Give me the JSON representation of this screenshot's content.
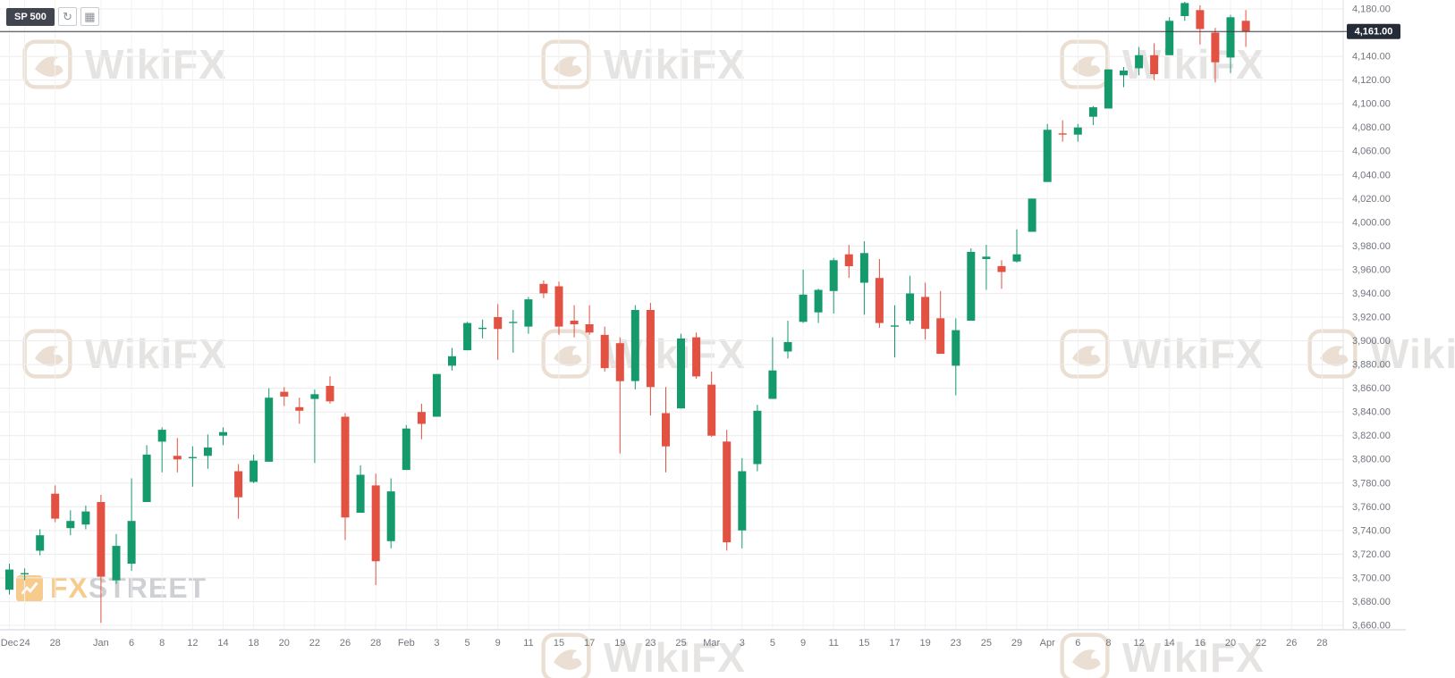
{
  "toolbar": {
    "symbol_label": "SP 500",
    "refresh_icon": "↻",
    "calendar_icon": "▦"
  },
  "price_line": {
    "label": "4,161.00",
    "color": "#3a3e46",
    "badge_bg": "#262b38",
    "badge_text_color": "#ffffff"
  },
  "watermark": {
    "text": "WikiFX"
  },
  "fxstreet_logo": {
    "fx": "FX",
    "street": "STREET"
  },
  "chart_data": {
    "type": "candlestick",
    "title": "SP 500",
    "grid": true,
    "up_color": "#159a6c",
    "down_color": "#e25141",
    "grid_color_h": "#ececec",
    "grid_color_v": "#f2f2f2",
    "axis_text_color": "#71757d",
    "current_price": 4161.0,
    "y_axis": {
      "max": 4180,
      "min": 3660,
      "step": 20,
      "tick_labels": [
        "4,180.00",
        "4,160.00",
        "4,140.00",
        "4,120.00",
        "4,100.00",
        "4,080.00",
        "4,060.00",
        "4,040.00",
        "4,020.00",
        "4,000.00",
        "3,980.00",
        "3,960.00",
        "3,940.00",
        "3,920.00",
        "3,900.00",
        "3,880.00",
        "3,860.00",
        "3,840.00",
        "3,820.00",
        "3,800.00",
        "3,780.00",
        "3,760.00",
        "3,740.00",
        "3,720.00",
        "3,700.00",
        "3,680.00",
        "3,660.00"
      ]
    },
    "x_axis": {
      "slots": 88,
      "labels": [
        [
          "Dec",
          0
        ],
        [
          "24",
          1
        ],
        [
          "28",
          3
        ],
        [
          "Jan",
          6
        ],
        [
          "6",
          8
        ],
        [
          "8",
          10
        ],
        [
          "12",
          12
        ],
        [
          "14",
          14
        ],
        [
          "18",
          16
        ],
        [
          "20",
          18
        ],
        [
          "22",
          20
        ],
        [
          "26",
          22
        ],
        [
          "28",
          24
        ],
        [
          "Feb",
          26
        ],
        [
          "3",
          28
        ],
        [
          "5",
          30
        ],
        [
          "9",
          32
        ],
        [
          "11",
          34
        ],
        [
          "15",
          36
        ],
        [
          "17",
          38
        ],
        [
          "19",
          40
        ],
        [
          "23",
          42
        ],
        [
          "25",
          44
        ],
        [
          "Mar",
          46
        ],
        [
          "3",
          48
        ],
        [
          "5",
          50
        ],
        [
          "9",
          52
        ],
        [
          "11",
          54
        ],
        [
          "15",
          56
        ],
        [
          "17",
          58
        ],
        [
          "19",
          60
        ],
        [
          "23",
          62
        ],
        [
          "25",
          64
        ],
        [
          "29",
          66
        ],
        [
          "Apr",
          68
        ],
        [
          "6",
          70
        ],
        [
          "8",
          72
        ],
        [
          "12",
          74
        ],
        [
          "14",
          76
        ],
        [
          "16",
          78
        ],
        [
          "20",
          80
        ],
        [
          "22",
          82
        ],
        [
          "26",
          84
        ],
        [
          "28",
          86
        ]
      ]
    },
    "ohlc_columns": [
      "date",
      "open",
      "high",
      "low",
      "close"
    ],
    "series": [
      [
        "Dec 23",
        3690,
        3712,
        3686,
        3707
      ],
      [
        "Dec 24",
        3703,
        3708,
        3698,
        3704
      ],
      [
        "Dec 28",
        3723,
        3741,
        3719,
        3736
      ],
      [
        "Dec 29",
        3771,
        3778,
        3747,
        3750
      ],
      [
        "Dec 30",
        3742,
        3757,
        3736,
        3748
      ],
      [
        "Dec 31",
        3745,
        3761,
        3741,
        3756
      ],
      [
        "Jan 4",
        3764,
        3770,
        3662,
        3701
      ],
      [
        "Jan 5",
        3698,
        3737,
        3695,
        3727
      ],
      [
        "Jan 6",
        3712,
        3784,
        3706,
        3748
      ],
      [
        "Jan 7",
        3764,
        3812,
        3764,
        3804
      ],
      [
        "Jan 8",
        3815,
        3827,
        3789,
        3825
      ],
      [
        "Jan 11",
        3803,
        3818,
        3789,
        3800
      ],
      [
        "Jan 12",
        3801,
        3811,
        3777,
        3802
      ],
      [
        "Jan 13",
        3803,
        3821,
        3792,
        3810
      ],
      [
        "Jan 14",
        3820,
        3827,
        3812,
        3823
      ],
      [
        "Jan 15",
        3790,
        3796,
        3750,
        3768
      ],
      [
        "Jan 19",
        3781,
        3804,
        3780,
        3799
      ],
      [
        "Jan 20",
        3798,
        3860,
        3798,
        3852
      ],
      [
        "Jan 21",
        3857,
        3861,
        3845,
        3853
      ],
      [
        "Jan 22",
        3844,
        3852,
        3830,
        3841
      ],
      [
        "Jan 25",
        3851,
        3859,
        3797,
        3855
      ],
      [
        "Jan 26",
        3862,
        3870,
        3847,
        3849
      ],
      [
        "Jan 27",
        3836,
        3839,
        3732,
        3751
      ],
      [
        "Jan 28",
        3755,
        3795,
        3755,
        3787
      ],
      [
        "Jan 29",
        3778,
        3788,
        3694,
        3714
      ],
      [
        "Feb 1",
        3731,
        3784,
        3725,
        3773
      ],
      [
        "Feb 2",
        3791,
        3829,
        3791,
        3826
      ],
      [
        "Feb 3",
        3840,
        3847,
        3817,
        3830
      ],
      [
        "Feb 4",
        3836,
        3872,
        3836,
        3872
      ],
      [
        "Feb 5",
        3879,
        3894,
        3875,
        3887
      ],
      [
        "Feb 8",
        3892,
        3916,
        3892,
        3915
      ],
      [
        "Feb 9",
        3910,
        3918,
        3902,
        3911
      ],
      [
        "Feb 10",
        3920,
        3931,
        3884,
        3910
      ],
      [
        "Feb 11",
        3916,
        3926,
        3890,
        3916
      ],
      [
        "Feb 12",
        3912,
        3937,
        3906,
        3935
      ],
      [
        "Feb 16",
        3948,
        3951,
        3936,
        3940
      ],
      [
        "Feb 17",
        3946,
        3950,
        3905,
        3912
      ],
      [
        "Feb 18",
        3917,
        3930,
        3903,
        3914
      ],
      [
        "Feb 19",
        3914,
        3930,
        3905,
        3907
      ],
      [
        "Feb 22",
        3905,
        3912,
        3874,
        3877
      ],
      [
        "Feb 23",
        3898,
        3903,
        3805,
        3866
      ],
      [
        "Feb 24",
        3866,
        3930,
        3859,
        3926
      ],
      [
        "Feb 25",
        3926,
        3932,
        3837,
        3861
      ],
      [
        "Feb 26",
        3839,
        3861,
        3789,
        3811
      ],
      [
        "Mar 1",
        3843,
        3906,
        3843,
        3902
      ],
      [
        "Mar 2",
        3903,
        3907,
        3868,
        3870
      ],
      [
        "Mar 3",
        3863,
        3874,
        3819,
        3820
      ],
      [
        "Mar 4",
        3815,
        3825,
        3723,
        3730
      ],
      [
        "Mar 5",
        3740,
        3801,
        3725,
        3790
      ],
      [
        "Mar 8",
        3796,
        3846,
        3790,
        3841
      ],
      [
        "Mar 9",
        3851,
        3903,
        3851,
        3875
      ],
      [
        "Mar 10",
        3891,
        3917,
        3885,
        3899
      ],
      [
        "Mar 11",
        3916,
        3960,
        3915,
        3939
      ],
      [
        "Mar 12",
        3924,
        3944,
        3915,
        3943
      ],
      [
        "Mar 15",
        3942,
        3970,
        3923,
        3968
      ],
      [
        "Mar 16",
        3973,
        3981,
        3953,
        3963
      ],
      [
        "Mar 17",
        3949,
        3984,
        3922,
        3974
      ],
      [
        "Mar 18",
        3953,
        3969,
        3911,
        3915
      ],
      [
        "Mar 19",
        3913,
        3930,
        3886,
        3913
      ],
      [
        "Mar 22",
        3917,
        3955,
        3914,
        3940
      ],
      [
        "Mar 23",
        3937,
        3949,
        3901,
        3910
      ],
      [
        "Mar 24",
        3919,
        3942,
        3889,
        3889
      ],
      [
        "Mar 25",
        3879,
        3919,
        3854,
        3909
      ],
      [
        "Mar 26",
        3917,
        3978,
        3917,
        3975
      ],
      [
        "Mar 29",
        3969,
        3981,
        3943,
        3971
      ],
      [
        "Mar 30",
        3963,
        3968,
        3944,
        3958
      ],
      [
        "Mar 31",
        3967,
        3994,
        3966,
        3973
      ],
      [
        "Apr 1",
        3992,
        4020,
        3992,
        4020
      ],
      [
        "Apr 5",
        4034,
        4083,
        4034,
        4078
      ],
      [
        "Apr 6",
        4075,
        4086,
        4068,
        4074
      ],
      [
        "Apr 7",
        4074,
        4083,
        4068,
        4080
      ],
      [
        "Apr 8",
        4089,
        4098,
        4082,
        4097
      ],
      [
        "Apr 9",
        4096,
        4129,
        4096,
        4129
      ],
      [
        "Apr 12",
        4124,
        4131,
        4114,
        4128
      ],
      [
        "Apr 13",
        4130,
        4148,
        4124,
        4141
      ],
      [
        "Apr 14",
        4141,
        4151,
        4120,
        4125
      ],
      [
        "Apr 15",
        4141,
        4173,
        4141,
        4170
      ],
      [
        "Apr 16",
        4174,
        4186,
        4170,
        4185
      ],
      [
        "Apr 19",
        4179,
        4183,
        4150,
        4163
      ],
      [
        "Apr 20",
        4160,
        4164,
        4118,
        4135
      ],
      [
        "Apr 21",
        4139,
        4175,
        4126,
        4173
      ],
      [
        "Apr 22",
        4170,
        4179,
        4148,
        4161
      ]
    ]
  }
}
